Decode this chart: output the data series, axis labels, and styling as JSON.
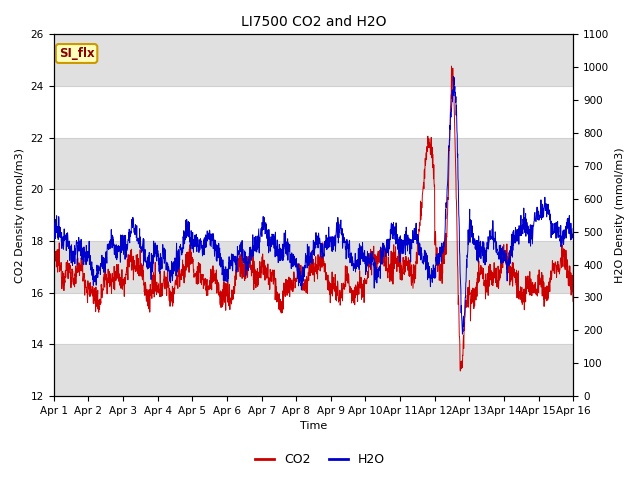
{
  "title": "LI7500 CO2 and H2O",
  "xlabel": "Time",
  "ylabel_left": "CO2 Density (mmol/m3)",
  "ylabel_right": "H2O Density (mmol/m3)",
  "ylim_left": [
    12,
    26
  ],
  "ylim_right": [
    0,
    1100
  ],
  "yticks_left": [
    12,
    14,
    16,
    18,
    20,
    22,
    24,
    26
  ],
  "yticks_right": [
    0,
    100,
    200,
    300,
    400,
    500,
    600,
    700,
    800,
    900,
    1000,
    1100
  ],
  "x_labels": [
    "Apr 1",
    "Apr 2",
    "Apr 3",
    "Apr 4",
    "Apr 5",
    "Apr 6",
    "Apr 7",
    "Apr 8",
    "Apr 9",
    "Apr 10",
    "Apr 11",
    "Apr 12",
    "Apr 13",
    "Apr 14",
    "Apr 15",
    "Apr 16"
  ],
  "co2_color": "#cc0000",
  "h2o_color": "#0000cc",
  "legend_label_co2": "CO2",
  "legend_label_h2o": "H2O",
  "annotation_text": "SI_flx",
  "bg_color": "#f0f0f0",
  "band_color": "#e0e0e0",
  "plot_bg_color": "#ffffff",
  "grid_color": "#d0d0d0",
  "n_points": 2000,
  "title_fontsize": 10,
  "label_fontsize": 8,
  "tick_fontsize": 7.5
}
